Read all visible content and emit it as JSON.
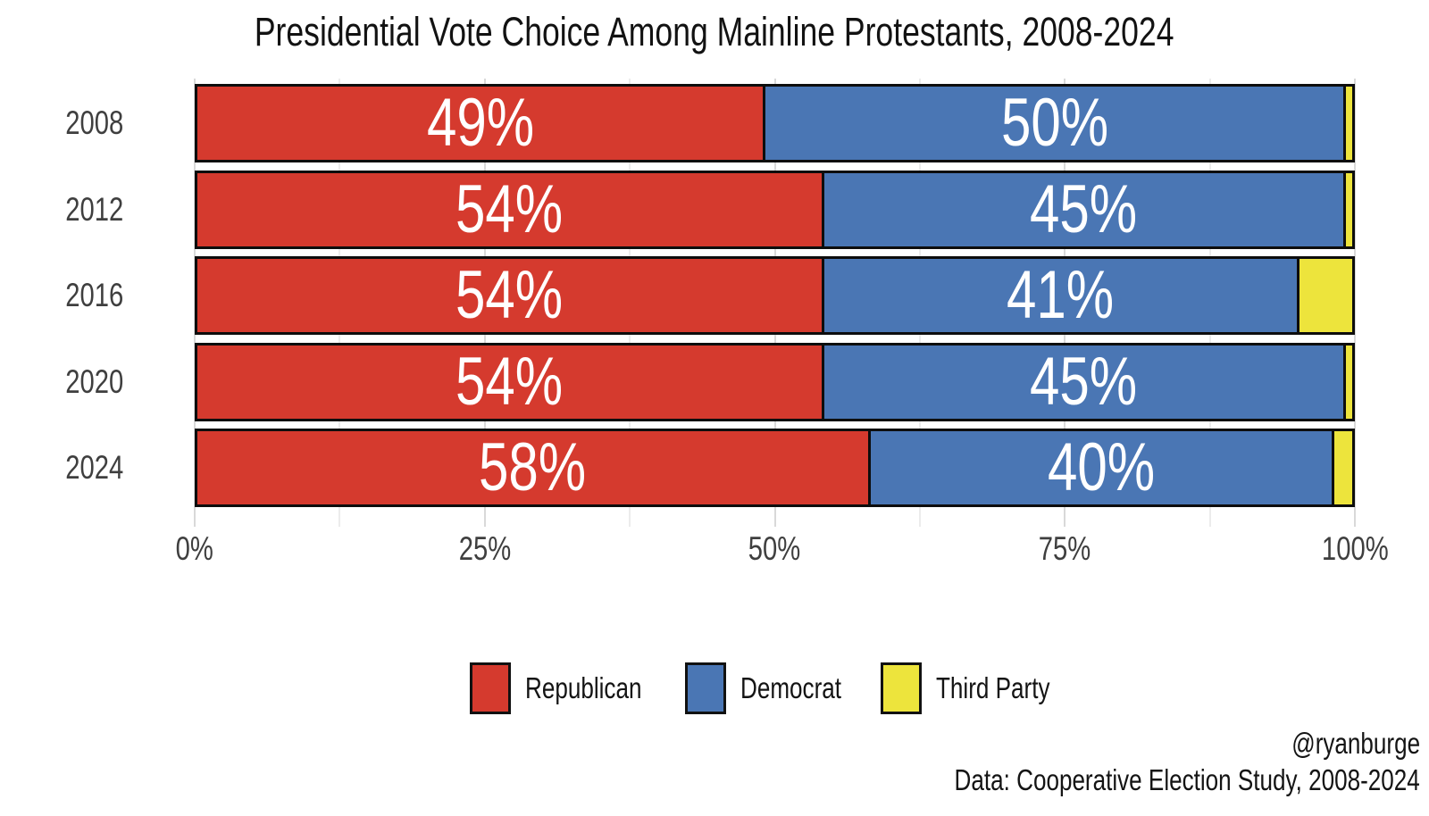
{
  "chart_data": {
    "type": "bar",
    "orientation": "horizontal",
    "stacked": true,
    "title": "Presidential Vote Choice Among Mainline Protestants, 2008-2024",
    "categories": [
      "2008",
      "2012",
      "2016",
      "2020",
      "2024"
    ],
    "series": [
      {
        "name": "Republican",
        "color": "#d53a2e",
        "values": [
          49,
          54,
          54,
          54,
          58
        ],
        "labels": [
          "49%",
          "54%",
          "54%",
          "54%",
          "58%"
        ]
      },
      {
        "name": "Democrat",
        "color": "#4a76b4",
        "values": [
          50,
          45,
          41,
          45,
          40
        ],
        "labels": [
          "50%",
          "45%",
          "41%",
          "45%",
          "40%"
        ]
      },
      {
        "name": "Third Party",
        "color": "#ede43c",
        "values": [
          1,
          1,
          5,
          1,
          2
        ],
        "labels": [
          "",
          "",
          "",
          "",
          ""
        ]
      }
    ],
    "xlim": [
      0,
      100
    ],
    "x_ticks": [
      {
        "value": 0,
        "label": "0%"
      },
      {
        "value": 25,
        "label": "25%"
      },
      {
        "value": 50,
        "label": "50%"
      },
      {
        "value": 75,
        "label": "75%"
      },
      {
        "value": 100,
        "label": "100%"
      }
    ],
    "grid_major": [
      0,
      25,
      50,
      75,
      100
    ],
    "grid_minor": [
      12.5,
      37.5,
      62.5,
      87.5
    ],
    "legend_position": "bottom-center",
    "bar_label_color": "#ffffff",
    "bar_border_color": "#0d0d0d"
  },
  "caption": {
    "handle": "@ryanburge",
    "source": "Data: Cooperative Election Study, 2008-2024"
  }
}
